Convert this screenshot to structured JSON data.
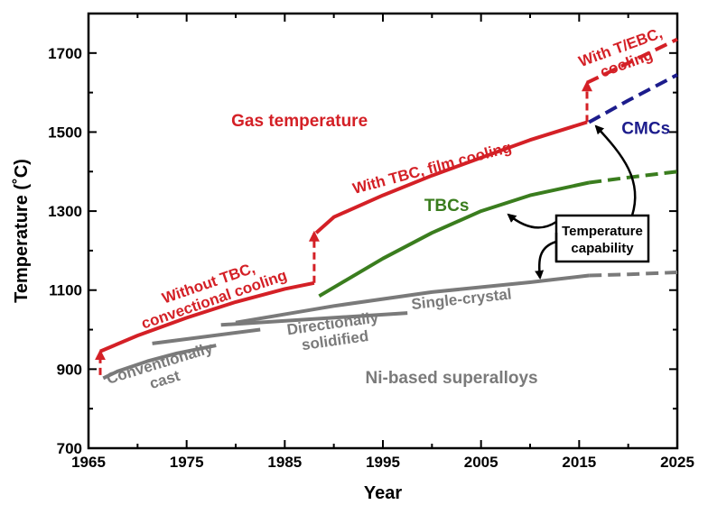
{
  "chart_data": {
    "type": "line",
    "title": "",
    "xlabel": "Year",
    "ylabel": "Temperature (˚C)",
    "xlim": [
      1965,
      2025
    ],
    "ylim": [
      700,
      1800
    ],
    "x_ticks": [
      1965,
      1975,
      1985,
      1995,
      2005,
      2015,
      2025
    ],
    "y_ticks": [
      700,
      900,
      1100,
      1300,
      1500,
      1700
    ],
    "grid": false,
    "legend": "none",
    "colors": {
      "gas": "#d42026",
      "tbc": "#3a7d1e",
      "cmc": "#1c1c8c",
      "alloy": "#7a7a7a",
      "text": "#000000"
    },
    "series": [
      {
        "key": "gas_no_tbc",
        "color": "#d42026",
        "style": "solid",
        "x": [
          1966.2,
          1970,
          1975,
          1980,
          1985,
          1988
        ],
        "y": [
          945,
          985,
          1030,
          1070,
          1103,
          1118
        ]
      },
      {
        "key": "gas_tbc_film",
        "color": "#d42026",
        "style": "solid",
        "x": [
          1988.2,
          1990,
          1995,
          2000,
          2005,
          2010,
          2015.8
        ],
        "y": [
          1245,
          1285,
          1340,
          1390,
          1435,
          1480,
          1525
        ]
      },
      {
        "key": "gas_tebc_proj",
        "color": "#d42026",
        "style": "dashed",
        "x": [
          2015.8,
          2020,
          2025
        ],
        "y": [
          1625,
          1675,
          1735
        ]
      },
      {
        "key": "gas_step_1966",
        "color": "#d42026",
        "style": "arrow",
        "x": [
          1966.2,
          1966.2
        ],
        "y": [
          885,
          945
        ]
      },
      {
        "key": "gas_step_1988",
        "color": "#d42026",
        "style": "arrow",
        "x": [
          1988,
          1988
        ],
        "y": [
          1118,
          1245
        ]
      },
      {
        "key": "gas_step_2016",
        "color": "#d42026",
        "style": "arrow",
        "x": [
          2015.8,
          2015.8
        ],
        "y": [
          1525,
          1625
        ]
      },
      {
        "key": "tbc",
        "color": "#3a7d1e",
        "style": "solid",
        "x": [
          1988.5,
          1995,
          2000,
          2005,
          2010,
          2016
        ],
        "y": [
          1085,
          1180,
          1245,
          1300,
          1340,
          1372
        ]
      },
      {
        "key": "tbc_proj",
        "color": "#3a7d1e",
        "style": "dashed",
        "x": [
          2016,
          2020,
          2025
        ],
        "y": [
          1372,
          1385,
          1400
        ]
      },
      {
        "key": "cmc_proj",
        "color": "#1c1c8c",
        "style": "dashed",
        "x": [
          2016,
          2020,
          2025
        ],
        "y": [
          1525,
          1580,
          1645
        ]
      },
      {
        "key": "cast",
        "color": "#7a7a7a",
        "style": "solid",
        "x": [
          1966.5,
          1968,
          1971,
          1974,
          1978
        ],
        "y": [
          877,
          895,
          920,
          940,
          960
        ]
      },
      {
        "key": "ds_bar_1",
        "color": "#7a7a7a",
        "style": "solid",
        "x": [
          1971.5,
          1982.5
        ],
        "y": [
          965,
          1000
        ]
      },
      {
        "key": "ds_bar_2",
        "color": "#7a7a7a",
        "style": "solid",
        "x": [
          1978.5,
          1997.5
        ],
        "y": [
          1012,
          1042
        ]
      },
      {
        "key": "single_crystal",
        "color": "#7a7a7a",
        "style": "solid",
        "x": [
          1980,
          1990,
          2000,
          2010,
          2016
        ],
        "y": [
          1018,
          1060,
          1095,
          1120,
          1137
        ]
      },
      {
        "key": "single_crystal_proj",
        "color": "#7a7a7a",
        "style": "dashed",
        "x": [
          2016,
          2020,
          2025
        ],
        "y": [
          1137,
          1140,
          1145
        ]
      }
    ],
    "annotations": [
      {
        "key": "gas_temperature",
        "lines": [
          "Gas temperature"
        ],
        "color": "#d42026",
        "x": 1986.5,
        "y": 1530,
        "rotate": 0,
        "size": 19
      },
      {
        "key": "without_tbc",
        "lines": [
          "Without TBC,",
          "convectional cooling"
        ],
        "color": "#d42026",
        "x": 1977.5,
        "y": 1098,
        "rotate": -19,
        "size": 17
      },
      {
        "key": "with_tbc_film",
        "lines": [
          "With TBC, film cooling"
        ],
        "color": "#d42026",
        "x": 2000,
        "y": 1410,
        "rotate": -15,
        "size": 17
      },
      {
        "key": "with_tebc",
        "lines": [
          "With T/EBC,",
          "cooling"
        ],
        "color": "#d42026",
        "x": 2019.5,
        "y": 1695,
        "rotate": -20,
        "size": 17
      },
      {
        "key": "cmcs",
        "lines": [
          "CMCs"
        ],
        "color": "#1c1c8c",
        "x": 2021.8,
        "y": 1510,
        "rotate": 0,
        "size": 19
      },
      {
        "key": "tbcs",
        "lines": [
          "TBCs"
        ],
        "color": "#3a7d1e",
        "x": 2001.5,
        "y": 1315,
        "rotate": 0,
        "size": 19
      },
      {
        "key": "single_crystal_label",
        "lines": [
          "Single-crystal"
        ],
        "color": "#7a7a7a",
        "x": 2003,
        "y": 1078,
        "rotate": -6,
        "size": 17
      },
      {
        "key": "ds_label",
        "lines": [
          "Directionally",
          "solidified"
        ],
        "color": "#7a7a7a",
        "x": 1990,
        "y": 995,
        "rotate": -8,
        "size": 17
      },
      {
        "key": "cast_label",
        "lines": [
          "Conventionally",
          "cast"
        ],
        "color": "#7a7a7a",
        "x": 1972.5,
        "y": 895,
        "rotate": -17,
        "size": 17
      },
      {
        "key": "ni_based",
        "lines": [
          "Ni-based superalloys"
        ],
        "color": "#7a7a7a",
        "x": 2002,
        "y": 880,
        "rotate": 0,
        "size": 19
      }
    ],
    "callout": {
      "lines": [
        "Temperature",
        "capability"
      ],
      "color": "#000000"
    }
  }
}
